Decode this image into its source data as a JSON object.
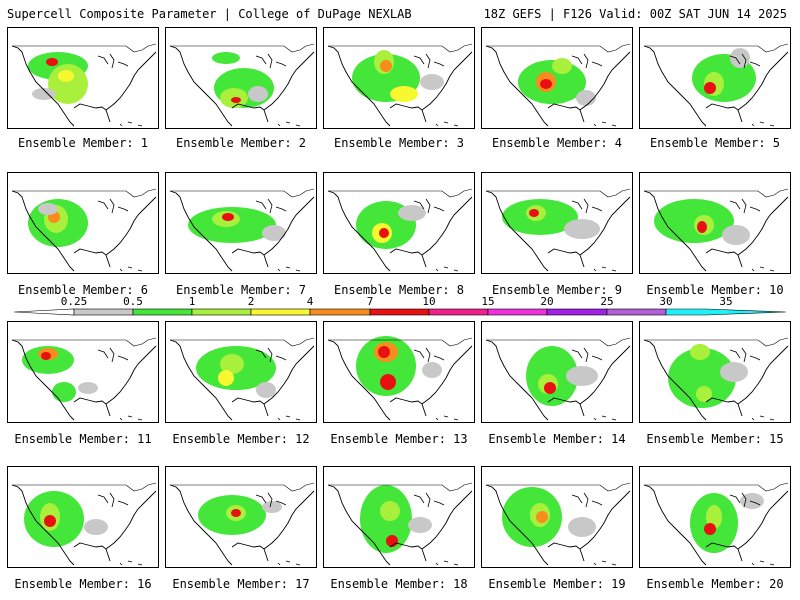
{
  "header": {
    "left": "Supercell Composite Parameter | College of DuPage NEXLAB",
    "right": "18Z GEFS | F126 Valid: 00Z SAT JUN 14 2025"
  },
  "panels": [
    {
      "label": "Ensemble Member: 1"
    },
    {
      "label": "Ensemble Member: 2"
    },
    {
      "label": "Ensemble Member: 3"
    },
    {
      "label": "Ensemble Member: 4"
    },
    {
      "label": "Ensemble Member: 5"
    },
    {
      "label": "Ensemble Member: 6"
    },
    {
      "label": "Ensemble Member: 7"
    },
    {
      "label": "Ensemble Member: 8"
    },
    {
      "label": "Ensemble Member: 9"
    },
    {
      "label": "Ensemble Member: 10"
    },
    {
      "label": "Ensemble Member: 11"
    },
    {
      "label": "Ensemble Member: 12"
    },
    {
      "label": "Ensemble Member: 13"
    },
    {
      "label": "Ensemble Member: 14"
    },
    {
      "label": "Ensemble Member: 15"
    },
    {
      "label": "Ensemble Member: 16"
    },
    {
      "label": "Ensemble Member: 17"
    },
    {
      "label": "Ensemble Member: 18"
    },
    {
      "label": "Ensemble Member: 19"
    },
    {
      "label": "Ensemble Member: 20"
    }
  ],
  "colorbar": {
    "ticks": [
      "0.25",
      "0.5",
      "1",
      "2",
      "4",
      "7",
      "10",
      "15",
      "20",
      "25",
      "30",
      "35"
    ],
    "colors": [
      "#c8c8c8",
      "#44e63a",
      "#a8f03c",
      "#f8f830",
      "#f88c1c",
      "#e81010",
      "#f0208c",
      "#f030e0",
      "#a020e8",
      "#b060d8",
      "#20f0f8"
    ]
  }
}
